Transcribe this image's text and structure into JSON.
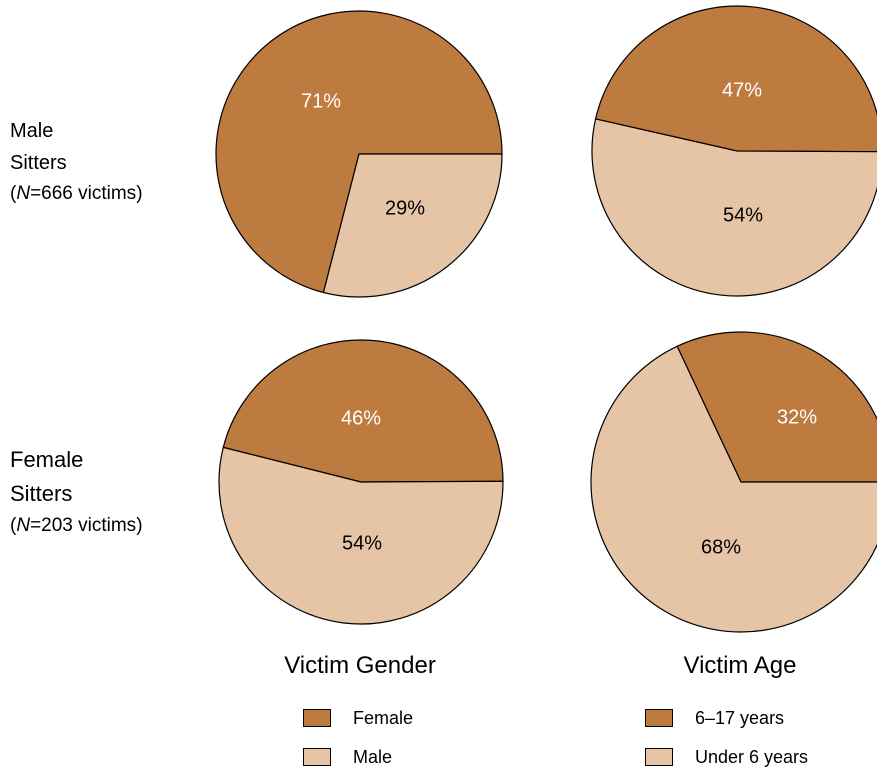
{
  "colors": {
    "dark": "#BE7B40",
    "light": "#E6C4A6",
    "outline": "#000000",
    "label_dark_bg": "#ffffff",
    "label_light_bg": "#000000"
  },
  "rows": [
    {
      "line1": "Male",
      "line2": "Sitters",
      "n_prefix": "N",
      "n_rest": "=666 victims"
    },
    {
      "line1": "Female",
      "line2": "Sitters",
      "n_prefix": "N",
      "n_rest": "=203 victims"
    }
  ],
  "legends": {
    "gender": {
      "title": "Victim Gender",
      "items": [
        "Female",
        "Male"
      ]
    },
    "age": {
      "title": "Victim Age",
      "items": [
        "6–17 years",
        "Under 6 years"
      ]
    }
  },
  "chart_data": [
    {
      "type": "pie",
      "title": "",
      "row": "Male Sitters (N=666 victims)",
      "column": "Victim Gender",
      "slices": [
        {
          "label": "Female",
          "value": 71,
          "text": "71%"
        },
        {
          "label": "Male",
          "value": 29,
          "text": "29%"
        }
      ]
    },
    {
      "type": "pie",
      "title": "",
      "row": "Male Sitters (N=666 victims)",
      "column": "Victim Age",
      "slices": [
        {
          "label": "6–17 years",
          "value": 47,
          "text": "47%"
        },
        {
          "label": "Under 6 years",
          "value": 54,
          "text": "54%"
        }
      ]
    },
    {
      "type": "pie",
      "title": "",
      "row": "Female Sitters (N=203 victims)",
      "column": "Victim Gender",
      "slices": [
        {
          "label": "Female",
          "value": 46,
          "text": "46%"
        },
        {
          "label": "Male",
          "value": 54,
          "text": "54%"
        }
      ]
    },
    {
      "type": "pie",
      "title": "",
      "row": "Female Sitters (N=203 victims)",
      "column": "Victim Age",
      "slices": [
        {
          "label": "6–17 years",
          "value": 32,
          "text": "32%"
        },
        {
          "label": "Under 6 years",
          "value": 68,
          "text": "68%"
        }
      ]
    }
  ]
}
